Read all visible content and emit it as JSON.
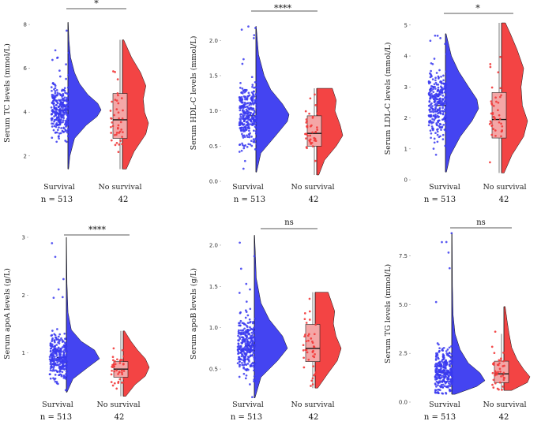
{
  "chart_data": [
    {
      "type": "raincloud",
      "ylabel": "Serum TC levels (mmol/L)",
      "categories": [
        "Survival",
        "No survival"
      ],
      "n_labels": [
        "n = 513",
        "42"
      ],
      "yticks": [
        2,
        4,
        6,
        8
      ],
      "ylim": [
        1.2,
        8.4
      ],
      "significance": "*",
      "groups": [
        {
          "name": "Survival",
          "color": "#3a3af0",
          "range": [
            1.4,
            8.1
          ],
          "center": 4.1,
          "spread": 0.8,
          "n_points": 300,
          "density": [
            [
              1.4,
              0.02
            ],
            [
              2.0,
              0.06
            ],
            [
              2.8,
              0.2
            ],
            [
              3.4,
              0.55
            ],
            [
              3.8,
              0.88
            ],
            [
              4.1,
              1.0
            ],
            [
              4.4,
              0.9
            ],
            [
              4.8,
              0.6
            ],
            [
              5.3,
              0.35
            ],
            [
              5.8,
              0.2
            ],
            [
              6.5,
              0.08
            ],
            [
              7.3,
              0.03
            ],
            [
              8.1,
              0.01
            ]
          ]
        },
        {
          "name": "No survival",
          "color": "#f23a3a",
          "range": [
            1.4,
            7.3
          ],
          "center": 3.9,
          "spread": 1.2,
          "n_points": 42,
          "box": {
            "q1": 2.8,
            "median": 3.65,
            "q3": 4.85,
            "whisker_low": 1.4,
            "whisker_high": 7.3
          },
          "density": [
            [
              1.4,
              0.15
            ],
            [
              2.2,
              0.45
            ],
            [
              3.0,
              0.9
            ],
            [
              3.5,
              1.0
            ],
            [
              4.0,
              0.85
            ],
            [
              4.6,
              0.8
            ],
            [
              5.2,
              0.9
            ],
            [
              5.8,
              0.7
            ],
            [
              6.5,
              0.35
            ],
            [
              7.3,
              0.05
            ]
          ]
        }
      ]
    },
    {
      "type": "raincloud",
      "ylabel": "Serum HDL-C levels (mmol/L)",
      "categories": [
        "Survival",
        "No survival"
      ],
      "n_labels": [
        "n = 513",
        "42"
      ],
      "yticks": [
        0.0,
        0.5,
        1.0,
        1.5,
        2.0
      ],
      "ylim": [
        0.0,
        2.35
      ],
      "significance": "****",
      "groups": [
        {
          "name": "Survival",
          "color": "#3a3af0",
          "range": [
            0.13,
            2.2
          ],
          "center": 0.93,
          "spread": 0.3,
          "n_points": 300,
          "density": [
            [
              0.13,
              0.02
            ],
            [
              0.4,
              0.15
            ],
            [
              0.65,
              0.6
            ],
            [
              0.85,
              0.95
            ],
            [
              0.95,
              1.0
            ],
            [
              1.1,
              0.8
            ],
            [
              1.3,
              0.45
            ],
            [
              1.5,
              0.25
            ],
            [
              1.8,
              0.08
            ],
            [
              2.2,
              0.01
            ]
          ]
        },
        {
          "name": "No survival",
          "color": "#f23a3a",
          "range": [
            0.09,
            1.32
          ],
          "center": 0.7,
          "spread": 0.25,
          "n_points": 42,
          "box": {
            "q1": 0.5,
            "median": 0.68,
            "q3": 0.93,
            "whisker_low": 0.09,
            "whisker_high": 1.32
          },
          "density": [
            [
              0.09,
              0.08
            ],
            [
              0.3,
              0.3
            ],
            [
              0.5,
              0.75
            ],
            [
              0.65,
              1.0
            ],
            [
              0.8,
              0.9
            ],
            [
              1.0,
              0.7
            ],
            [
              1.15,
              0.75
            ],
            [
              1.32,
              0.6
            ]
          ]
        }
      ]
    },
    {
      "type": "raincloud",
      "ylabel": "Serum LDL-C levels (mmol/L)",
      "categories": [
        "Survival",
        "No survival"
      ],
      "n_labels": [
        "n = 513",
        "42"
      ],
      "yticks": [
        0,
        1,
        2,
        3,
        4,
        5
      ],
      "ylim": [
        -0.1,
        5.3
      ],
      "significance": "*",
      "groups": [
        {
          "name": "Survival",
          "color": "#3a3af0",
          "range": [
            0.25,
            4.72
          ],
          "center": 2.4,
          "spread": 0.75,
          "n_points": 300,
          "density": [
            [
              0.25,
              0.03
            ],
            [
              0.8,
              0.15
            ],
            [
              1.4,
              0.45
            ],
            [
              1.9,
              0.8
            ],
            [
              2.3,
              1.0
            ],
            [
              2.6,
              0.95
            ],
            [
              3.0,
              0.7
            ],
            [
              3.5,
              0.4
            ],
            [
              4.0,
              0.18
            ],
            [
              4.72,
              0.02
            ]
          ]
        },
        {
          "name": "No survival",
          "color": "#f23a3a",
          "range": [
            0.22,
            5.07
          ],
          "center": 2.1,
          "spread": 1.0,
          "n_points": 42,
          "box": {
            "q1": 1.35,
            "median": 1.95,
            "q3": 2.82,
            "whisker_low": 0.22,
            "whisker_high": 5.07
          },
          "density": [
            [
              0.22,
              0.1
            ],
            [
              0.8,
              0.4
            ],
            [
              1.4,
              0.85
            ],
            [
              1.9,
              1.0
            ],
            [
              2.4,
              0.8
            ],
            [
              3.0,
              0.75
            ],
            [
              3.6,
              0.85
            ],
            [
              4.2,
              0.6
            ],
            [
              4.7,
              0.35
            ],
            [
              5.07,
              0.15
            ]
          ]
        }
      ]
    },
    {
      "type": "raincloud",
      "ylabel": "Serum apoA levels (g/L)",
      "categories": [
        "Survival",
        "No survival"
      ],
      "n_labels": [
        "n = 513",
        "42"
      ],
      "yticks": [
        1,
        2,
        3
      ],
      "ylim": [
        0.15,
        3.15
      ],
      "significance": "****",
      "groups": [
        {
          "name": "Survival",
          "color": "#3a3af0",
          "range": [
            0.32,
            3.0
          ],
          "center": 0.92,
          "spread": 0.25,
          "n_points": 300,
          "density": [
            [
              0.32,
              0.02
            ],
            [
              0.55,
              0.2
            ],
            [
              0.75,
              0.65
            ],
            [
              0.9,
              1.0
            ],
            [
              1.05,
              0.85
            ],
            [
              1.2,
              0.45
            ],
            [
              1.4,
              0.15
            ],
            [
              1.7,
              0.05
            ],
            [
              2.2,
              0.02
            ],
            [
              3.0,
              0.005
            ]
          ]
        },
        {
          "name": "No survival",
          "color": "#f23a3a",
          "range": [
            0.25,
            1.38
          ],
          "center": 0.72,
          "spread": 0.25,
          "n_points": 42,
          "box": {
            "q1": 0.58,
            "median": 0.72,
            "q3": 0.85,
            "whisker_low": 0.25,
            "whisker_high": 1.38
          },
          "density": [
            [
              0.25,
              0.1
            ],
            [
              0.45,
              0.45
            ],
            [
              0.6,
              0.85
            ],
            [
              0.75,
              1.0
            ],
            [
              0.9,
              0.85
            ],
            [
              1.05,
              0.55
            ],
            [
              1.2,
              0.3
            ],
            [
              1.38,
              0.05
            ]
          ]
        }
      ]
    },
    {
      "type": "raincloud",
      "ylabel": "Serum apoB levels (g/L)",
      "categories": [
        "Survival",
        "No survival"
      ],
      "n_labels": [
        "n = 513",
        "42"
      ],
      "yticks": [
        0.5,
        1.0,
        1.5,
        2.0
      ],
      "ylim": [
        0.1,
        2.2
      ],
      "significance": "ns",
      "groups": [
        {
          "name": "Survival",
          "color": "#3a3af0",
          "range": [
            0.15,
            2.12
          ],
          "center": 0.78,
          "spread": 0.22,
          "n_points": 300,
          "density": [
            [
              0.15,
              0.02
            ],
            [
              0.4,
              0.2
            ],
            [
              0.6,
              0.7
            ],
            [
              0.75,
              1.0
            ],
            [
              0.9,
              0.85
            ],
            [
              1.1,
              0.45
            ],
            [
              1.3,
              0.2
            ],
            [
              1.6,
              0.06
            ],
            [
              2.12,
              0.01
            ]
          ]
        },
        {
          "name": "No survival",
          "color": "#f23a3a",
          "range": [
            0.27,
            1.43
          ],
          "center": 0.8,
          "spread": 0.3,
          "n_points": 42,
          "box": {
            "q1": 0.59,
            "median": 0.75,
            "q3": 1.04,
            "whisker_low": 0.27,
            "whisker_high": 1.43
          },
          "density": [
            [
              0.27,
              0.1
            ],
            [
              0.45,
              0.5
            ],
            [
              0.6,
              0.85
            ],
            [
              0.75,
              1.0
            ],
            [
              0.9,
              0.8
            ],
            [
              1.05,
              0.7
            ],
            [
              1.2,
              0.75
            ],
            [
              1.43,
              0.5
            ]
          ]
        }
      ]
    },
    {
      "type": "raincloud",
      "ylabel": "Serum TG levels (mmol/L)",
      "categories": [
        "Survival",
        "No survival"
      ],
      "n_labels": [
        "n = 513",
        "42"
      ],
      "yticks": [
        0.0,
        2.5,
        5.0,
        7.5
      ],
      "ylim": [
        0.0,
        8.9
      ],
      "significance": "ns",
      "groups": [
        {
          "name": "Survival",
          "color": "#3a3af0",
          "range": [
            0.4,
            8.7
          ],
          "center": 1.5,
          "spread": 0.8,
          "n_points": 300,
          "density": [
            [
              0.4,
              0.1
            ],
            [
              0.8,
              0.75
            ],
            [
              1.1,
              1.0
            ],
            [
              1.5,
              0.85
            ],
            [
              2.0,
              0.5
            ],
            [
              2.7,
              0.25
            ],
            [
              3.5,
              0.1
            ],
            [
              4.5,
              0.04
            ],
            [
              6.0,
              0.02
            ],
            [
              8.7,
              0.01
            ]
          ]
        },
        {
          "name": "No survival",
          "color": "#f23a3a",
          "range": [
            0.6,
            4.9
          ],
          "center": 1.6,
          "spread": 0.9,
          "n_points": 42,
          "box": {
            "q1": 1.0,
            "median": 1.45,
            "q3": 2.1,
            "whisker_low": 0.6,
            "whisker_high": 3.5
          },
          "density": [
            [
              0.6,
              0.3
            ],
            [
              1.0,
              0.9
            ],
            [
              1.3,
              1.0
            ],
            [
              1.7,
              0.75
            ],
            [
              2.2,
              0.5
            ],
            [
              2.8,
              0.3
            ],
            [
              3.5,
              0.2
            ],
            [
              4.2,
              0.12
            ],
            [
              4.9,
              0.05
            ]
          ]
        }
      ]
    }
  ]
}
